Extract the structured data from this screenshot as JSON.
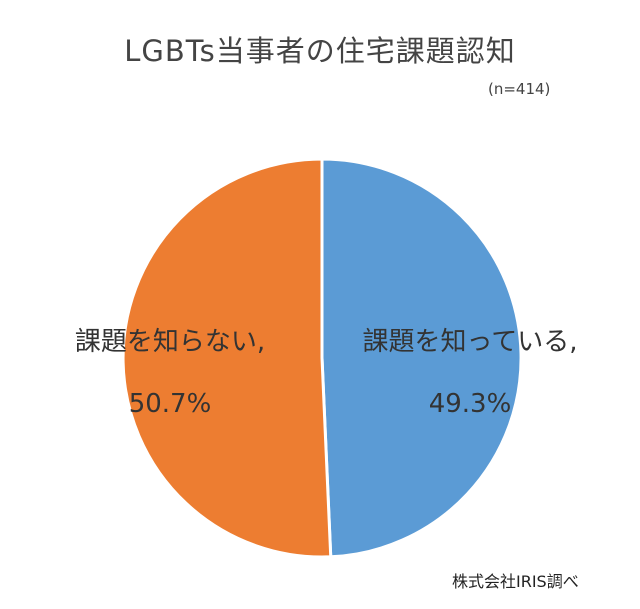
{
  "chart_data": {
    "type": "pie",
    "title": "LGBTs当事者の住宅課題認知",
    "subtitle": "(n=414)",
    "slices": [
      {
        "name": "課題を知っている",
        "label_line1": "課題を知っている,",
        "label_line2": "49.3%",
        "value": 49.3,
        "color": "#5b9bd5"
      },
      {
        "name": "課題を知らない",
        "label_line1": "課題を知らない,",
        "label_line2": "50.7%",
        "value": 50.7,
        "color": "#ed7d31"
      }
    ],
    "start": "top",
    "direction": "clockwise",
    "border_color": "#ffffff"
  },
  "source": "株式会社IRIS調べ"
}
